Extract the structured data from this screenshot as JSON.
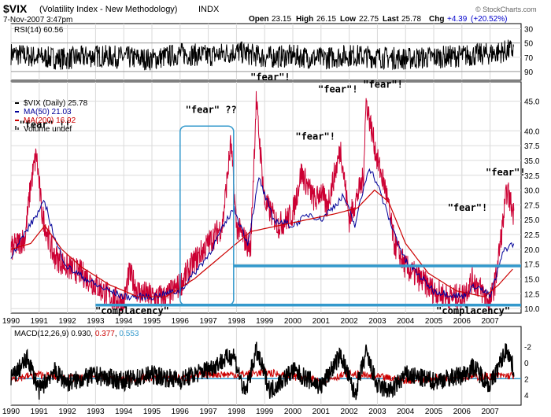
{
  "header": {
    "symbol": "$VIX",
    "name": "(Volatility Index - New Methodology)",
    "exchange": "INDX",
    "date": "7-Nov-2007 3:47pm",
    "ohlc": {
      "open_label": "Open",
      "open": "23.15",
      "high_label": "High",
      "high": "26.15",
      "low_label": "Low",
      "low": "22.75",
      "last_label": "Last",
      "last": "25.78",
      "chg_label": "Chg",
      "chg": "+4.39",
      "chg_pct": "(+20.52%)",
      "chg_color": "#0000cc"
    },
    "watermark": "© StockCharts.com"
  },
  "rsi": {
    "label": "RSI(14) 60.56",
    "ticks": [
      "90",
      "70",
      "50",
      "30"
    ]
  },
  "legend": [
    {
      "text": "$VIX (Daily) 25.78",
      "color": "#000000"
    },
    {
      "text": "MA(50) 21.03",
      "color": "#000099"
    },
    {
      "text": "MA(200) 16.92",
      "color": "#cc0000"
    },
    {
      "text": "Volume undef",
      "color": "#000000"
    }
  ],
  "macd": {
    "label_prefix": "MACD(12,26,9) 0.930, ",
    "signal_val": "0.377",
    "signal_color": "#cc0000",
    "hist_val": "0.553",
    "hist_color": "#3399cc",
    "ticks": [
      "4",
      "2",
      "0",
      "-2"
    ]
  },
  "annotations": [
    {
      "text": "\"fear\" !!",
      "x": 1991.2,
      "y": 40.5
    },
    {
      "text": "\"fear\" ??",
      "x": 1997.1,
      "y": 43.0
    },
    {
      "text": "\"fear\"!",
      "x": 1999.2,
      "y": 48.5
    },
    {
      "text": "\"fear\"!",
      "x": 2001.6,
      "y": 46.5
    },
    {
      "text": "\"fear\"!",
      "x": 2003.2,
      "y": 47.3
    },
    {
      "text": "\"fear\"!",
      "x": 2000.8,
      "y": 38.5
    },
    {
      "text": "\"fear\"!",
      "x": 2006.2,
      "y": 26.5
    },
    {
      "text": "\"fear\"!",
      "x": 2007.55,
      "y": 32.5
    },
    {
      "text": "\"complacency\"",
      "x": 1994.3,
      "y": 9.1
    },
    {
      "text": "\"complacency\"",
      "x": 2006.4,
      "y": 9.1
    }
  ],
  "chart_data": [
    {
      "type": "line",
      "title": "RSI(14)",
      "ylim": [
        20,
        95
      ],
      "y_ticks": [
        30,
        50,
        70,
        90
      ],
      "x_range": [
        1990.0,
        2008.1
      ],
      "note_values": "oscillating between 30 and 80",
      "series": [
        {
          "name": "RSI(14)",
          "color": "#000000",
          "x": [
            1990.0,
            1991.0,
            1992.0,
            1993.0,
            1994.0,
            1995.0,
            1996.0,
            1997.0,
            1998.0,
            1999.0,
            2000.0,
            2001.0,
            2002.0,
            2003.0,
            2004.0,
            2005.0,
            2006.0,
            2007.0,
            2007.85
          ],
          "values": [
            55,
            50,
            48,
            52,
            50,
            47,
            55,
            52,
            58,
            50,
            52,
            48,
            53,
            50,
            48,
            50,
            52,
            55,
            60.56
          ]
        }
      ]
    },
    {
      "type": "line",
      "title": "$VIX (Daily)",
      "ylim": [
        9.5,
        48
      ],
      "y_ticks": [
        10.0,
        12.5,
        15.0,
        17.5,
        20.0,
        22.5,
        25.0,
        27.5,
        30.0,
        32.5,
        35.0,
        37.5,
        40.0,
        45.0
      ],
      "x_ticks": [
        "1990",
        "1991",
        "1992",
        "1993",
        "1994",
        "1995",
        "1996",
        "1997",
        "1998",
        "1999",
        "2000",
        "2001",
        "2002",
        "2003",
        "2004",
        "2005",
        "2006",
        "2007"
      ],
      "x_range": [
        1990.0,
        2008.1
      ],
      "series": [
        {
          "name": "$VIX (Daily)",
          "color": "#cc0033",
          "x": [
            1990.0,
            1990.5,
            1990.7,
            1990.9,
            1991.1,
            1991.5,
            1992.0,
            1992.5,
            1993.0,
            1993.5,
            1994.0,
            1994.2,
            1994.5,
            1995.0,
            1995.5,
            1996.0,
            1996.5,
            1997.0,
            1997.5,
            1997.8,
            1998.0,
            1998.5,
            1998.7,
            1999.0,
            1999.5,
            2000.0,
            2000.3,
            2000.8,
            2001.0,
            2001.2,
            2001.7,
            2002.0,
            2002.5,
            2002.6,
            2002.8,
            2003.0,
            2003.3,
            2003.6,
            2004.0,
            2004.5,
            2005.0,
            2005.5,
            2006.0,
            2006.4,
            2006.7,
            2007.0,
            2007.2,
            2007.6,
            2007.85
          ],
          "values": [
            20,
            22,
            31,
            36,
            26,
            19,
            17,
            16,
            14,
            12,
            11,
            16,
            13,
            12,
            12,
            14,
            18,
            21,
            24,
            38,
            24,
            20,
            45,
            28,
            24,
            26,
            33,
            28,
            30,
            27,
            37,
            25,
            32,
            45,
            40,
            35,
            30,
            21,
            17,
            15,
            13,
            12,
            12,
            15,
            13,
            11,
            15,
            30,
            25.78
          ]
        },
        {
          "name": "MA(50)",
          "color": "#000099",
          "x": [
            1990.0,
            1990.8,
            1991.2,
            1991.6,
            1992.0,
            1993.0,
            1994.0,
            1995.0,
            1996.0,
            1997.0,
            1997.9,
            1998.4,
            1998.8,
            1999.3,
            2000.0,
            2000.6,
            2001.0,
            2001.8,
            2002.2,
            2002.7,
            2003.0,
            2003.5,
            2004.0,
            2005.0,
            2006.0,
            2006.5,
            2007.0,
            2007.5,
            2007.85
          ],
          "values": [
            19,
            25,
            28,
            21,
            17,
            14,
            12,
            12,
            13,
            19,
            27,
            21,
            32,
            25,
            24,
            26,
            25,
            29,
            24,
            34,
            31,
            24,
            18,
            13,
            12,
            14,
            12,
            20,
            21.03
          ]
        },
        {
          "name": "MA(200)",
          "color": "#cc0000",
          "x": [
            1990.0,
            1990.7,
            1991.2,
            1991.8,
            1992.5,
            1993.5,
            1994.5,
            1995.5,
            1996.5,
            1997.5,
            1998.5,
            1999.5,
            2000.5,
            2001.5,
            2002.3,
            2002.9,
            2003.4,
            2004.0,
            2004.8,
            2005.8,
            2006.8,
            2007.3,
            2007.85
          ],
          "values": [
            20,
            21,
            24,
            20,
            17,
            14,
            12,
            12,
            15,
            19,
            23,
            24,
            25,
            26,
            27,
            30,
            28,
            21,
            16,
            13,
            12,
            14,
            16.92
          ]
        }
      ],
      "annotations_shapes": [
        {
          "kind": "horizontal_line",
          "y": 17.2,
          "x_from": 1997.9,
          "x_to": 2008.1,
          "color": "#3399cc"
        },
        {
          "kind": "horizontal_line",
          "y": 10.6,
          "x_from": 1993.0,
          "x_to": 2008.1,
          "color": "#3399cc"
        },
        {
          "kind": "box",
          "x_from": 1996.0,
          "x_to": 1997.9,
          "y_from": 10.6,
          "y_to": 40.8,
          "color": "#3399cc"
        }
      ]
    },
    {
      "type": "line",
      "title": "MACD(12,26,9)",
      "ylim": [
        -3,
        5
      ],
      "y_ticks": [
        -2,
        0,
        2,
        4
      ],
      "x_range": [
        1990.0,
        2008.1
      ],
      "series": [
        {
          "name": "MACD",
          "color": "#000000",
          "x": [
            1990.0,
            1990.6,
            1991.0,
            1991.5,
            1992.0,
            1993.0,
            1994.0,
            1995.0,
            1996.0,
            1997.0,
            1997.9,
            1998.3,
            1998.7,
            1999.2,
            2000.0,
            2001.0,
            2001.7,
            2002.2,
            2002.6,
            2003.0,
            2003.5,
            2004.0,
            2005.0,
            2006.0,
            2006.4,
            2007.0,
            2007.6,
            2007.85
          ],
          "values": [
            0,
            2.5,
            -1.5,
            1,
            -0.5,
            0.4,
            -0.3,
            0.5,
            -0.2,
            1.2,
            3,
            -2,
            3.5,
            -1.5,
            1,
            -1,
            3,
            -2,
            3.2,
            -1,
            -1.5,
            0.5,
            -0.3,
            0.4,
            1.5,
            -0.8,
            3.8,
            0.93
          ]
        },
        {
          "name": "Signal",
          "color": "#cc0000",
          "x": [
            1990.0,
            1991.0,
            1992.0,
            1993.0,
            1994.0,
            1995.0,
            1996.0,
            1997.0,
            1998.0,
            1999.0,
            2000.0,
            2001.0,
            2002.0,
            2003.0,
            2004.0,
            2005.0,
            2006.0,
            2007.0,
            2007.85
          ],
          "values": [
            0,
            0.5,
            0,
            0.2,
            -0.1,
            0.2,
            0,
            0.6,
            0.5,
            0.8,
            0.3,
            -0.2,
            0.6,
            0.2,
            -0.2,
            0.1,
            0.2,
            0.3,
            0.377
          ]
        }
      ],
      "zero_line_color": "#3399cc"
    }
  ]
}
